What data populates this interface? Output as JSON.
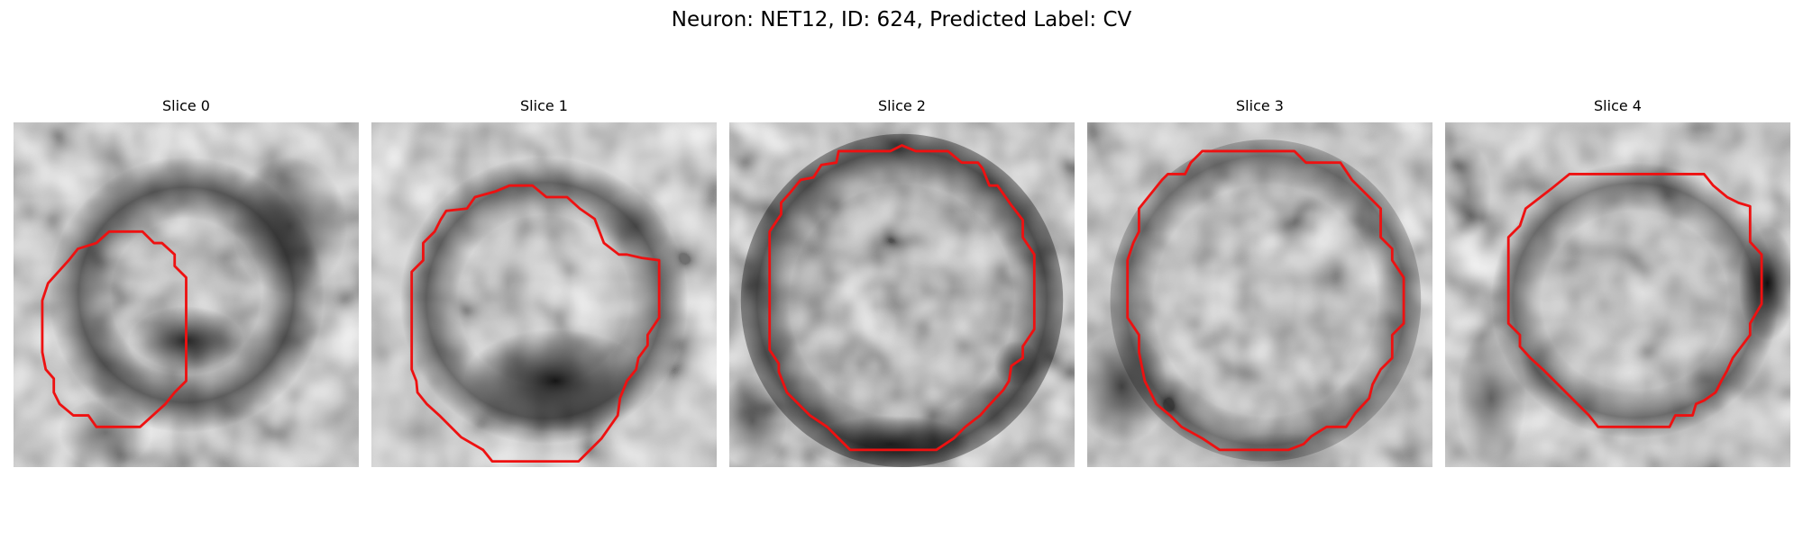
{
  "figure": {
    "title": "Neuron: NET12, ID: 624, Predicted Label: CV",
    "contour_color": "#ee1111"
  },
  "panels": [
    {
      "title": "Slice 0",
      "contour": [
        [
          9.3,
          9.5
        ],
        [
          11.2,
          9.5
        ],
        [
          12.2,
          10.5
        ],
        [
          12.9,
          10.5
        ],
        [
          14.0,
          11.5
        ],
        [
          14.0,
          12.5
        ],
        [
          15.0,
          13.5
        ],
        [
          15.0,
          22.5
        ],
        [
          14.0,
          23.5
        ],
        [
          13.2,
          24.5
        ],
        [
          11.0,
          26.5
        ],
        [
          7.2,
          26.5
        ],
        [
          6.5,
          25.5
        ],
        [
          5.2,
          25.5
        ],
        [
          4.0,
          24.5
        ],
        [
          3.5,
          23.5
        ],
        [
          3.5,
          22.3
        ],
        [
          2.8,
          21.5
        ],
        [
          2.5,
          20.0
        ],
        [
          2.5,
          15.5
        ],
        [
          3.0,
          14.0
        ],
        [
          4.8,
          12.0
        ],
        [
          5.6,
          11.0
        ],
        [
          7.2,
          10.5
        ],
        [
          8.3,
          9.5
        ]
      ]
    },
    {
      "title": "Slice 1",
      "contour": [
        [
          12.0,
          5.5
        ],
        [
          14.0,
          5.5
        ],
        [
          15.2,
          6.5
        ],
        [
          17.0,
          6.5
        ],
        [
          18.1,
          7.5
        ],
        [
          19.4,
          8.4
        ],
        [
          20.2,
          10.5
        ],
        [
          21.5,
          11.5
        ],
        [
          22.2,
          11.5
        ],
        [
          23.5,
          11.8
        ],
        [
          25.0,
          12.0
        ],
        [
          25.0,
          17.0
        ],
        [
          24.0,
          18.5
        ],
        [
          24.0,
          19.4
        ],
        [
          23.2,
          20.5
        ],
        [
          23.0,
          21.5
        ],
        [
          22.2,
          22.5
        ],
        [
          21.6,
          24.0
        ],
        [
          21.4,
          25.5
        ],
        [
          20.0,
          27.5
        ],
        [
          18.0,
          29.5
        ],
        [
          10.5,
          29.5
        ],
        [
          9.7,
          28.5
        ],
        [
          7.8,
          27.4
        ],
        [
          5.9,
          25.5
        ],
        [
          4.8,
          24.5
        ],
        [
          4.0,
          23.5
        ],
        [
          3.9,
          22.5
        ],
        [
          3.5,
          21.5
        ],
        [
          3.5,
          13.0
        ],
        [
          4.5,
          12.0
        ],
        [
          4.5,
          10.5
        ],
        [
          5.5,
          9.5
        ],
        [
          6.0,
          8.5
        ],
        [
          6.5,
          7.7
        ],
        [
          8.3,
          7.5
        ],
        [
          9.0,
          6.5
        ],
        [
          10.8,
          6.0
        ]
      ]
    },
    {
      "title": "Slice 2",
      "contour": [
        [
          15.0,
          2.0
        ],
        [
          16.2,
          2.5
        ],
        [
          19.0,
          2.5
        ],
        [
          20.2,
          3.5
        ],
        [
          21.6,
          3.5
        ],
        [
          22.0,
          4.0
        ],
        [
          22.6,
          5.5
        ],
        [
          23.3,
          5.5
        ],
        [
          24.5,
          7.2
        ],
        [
          25.5,
          8.5
        ],
        [
          25.5,
          10.0
        ],
        [
          26.5,
          11.5
        ],
        [
          26.5,
          18.0
        ],
        [
          25.5,
          19.5
        ],
        [
          25.5,
          20.5
        ],
        [
          24.5,
          21.2
        ],
        [
          24.3,
          22.5
        ],
        [
          23.8,
          23.3
        ],
        [
          22.5,
          24.7
        ],
        [
          21.8,
          25.5
        ],
        [
          20.5,
          26.5
        ],
        [
          19.5,
          27.5
        ],
        [
          18.0,
          28.5
        ],
        [
          10.5,
          28.5
        ],
        [
          9.5,
          27.5
        ],
        [
          8.5,
          26.5
        ],
        [
          7.0,
          25.5
        ],
        [
          6.0,
          24.5
        ],
        [
          5.0,
          23.5
        ],
        [
          4.3,
          21.7
        ],
        [
          4.3,
          21.0
        ],
        [
          3.5,
          19.8
        ],
        [
          3.5,
          9.5
        ],
        [
          4.5,
          8.0
        ],
        [
          4.5,
          7.0
        ],
        [
          5.3,
          6.1
        ],
        [
          6.2,
          5.0
        ],
        [
          7.3,
          4.8
        ],
        [
          8.0,
          3.7
        ],
        [
          9.3,
          3.5
        ],
        [
          9.5,
          2.5
        ],
        [
          14.0,
          2.5
        ]
      ]
    },
    {
      "title": "Slice 3",
      "contour": [
        [
          10.0,
          2.5
        ],
        [
          18.0,
          2.5
        ],
        [
          19.0,
          3.5
        ],
        [
          22.0,
          3.5
        ],
        [
          23.0,
          5.0
        ],
        [
          25.5,
          7.5
        ],
        [
          25.5,
          10.0
        ],
        [
          26.5,
          11.0
        ],
        [
          26.5,
          12.0
        ],
        [
          27.5,
          13.5
        ],
        [
          27.5,
          17.5
        ],
        [
          26.5,
          18.5
        ],
        [
          26.5,
          20.5
        ],
        [
          25.5,
          21.5
        ],
        [
          24.8,
          22.8
        ],
        [
          24.5,
          24.0
        ],
        [
          23.3,
          25.3
        ],
        [
          22.5,
          26.5
        ],
        [
          20.8,
          26.5
        ],
        [
          19.5,
          27.3
        ],
        [
          18.8,
          28.0
        ],
        [
          17.5,
          28.5
        ],
        [
          11.5,
          28.5
        ],
        [
          10.0,
          27.5
        ],
        [
          8.2,
          26.5
        ],
        [
          7.2,
          25.5
        ],
        [
          6.0,
          24.5
        ],
        [
          5.5,
          23.5
        ],
        [
          5.0,
          22.5
        ],
        [
          4.7,
          21.0
        ],
        [
          4.5,
          20.0
        ],
        [
          4.5,
          18.5
        ],
        [
          3.5,
          17.0
        ],
        [
          3.5,
          12.0
        ],
        [
          4.0,
          10.5
        ],
        [
          4.5,
          9.5
        ],
        [
          4.5,
          7.5
        ],
        [
          6.5,
          5.0
        ],
        [
          7.0,
          4.5
        ],
        [
          8.5,
          4.5
        ],
        [
          9.0,
          3.5
        ]
      ]
    },
    {
      "title": "Slice 4",
      "contour": [
        [
          10.8,
          4.5
        ],
        [
          22.5,
          4.5
        ],
        [
          23.3,
          5.5
        ],
        [
          24.5,
          6.5
        ],
        [
          25.5,
          7.0
        ],
        [
          26.5,
          7.3
        ],
        [
          26.5,
          10.4
        ],
        [
          27.5,
          11.5
        ],
        [
          27.5,
          15.8
        ],
        [
          26.5,
          17.5
        ],
        [
          26.5,
          18.5
        ],
        [
          25.0,
          20.5
        ],
        [
          24.5,
          21.6
        ],
        [
          24.0,
          22.5
        ],
        [
          23.5,
          23.5
        ],
        [
          22.5,
          24.2
        ],
        [
          21.8,
          24.5
        ],
        [
          21.5,
          25.5
        ],
        [
          20.0,
          25.5
        ],
        [
          19.5,
          26.5
        ],
        [
          13.3,
          26.5
        ],
        [
          12.5,
          25.5
        ],
        [
          11.5,
          24.5
        ],
        [
          10.5,
          23.5
        ],
        [
          9.5,
          22.5
        ],
        [
          8.5,
          21.5
        ],
        [
          7.4,
          20.5
        ],
        [
          6.5,
          19.5
        ],
        [
          6.5,
          18.5
        ],
        [
          5.5,
          17.5
        ],
        [
          5.5,
          10.0
        ],
        [
          6.5,
          9.0
        ],
        [
          7.0,
          7.5
        ],
        [
          9.2,
          5.8
        ]
      ]
    }
  ]
}
